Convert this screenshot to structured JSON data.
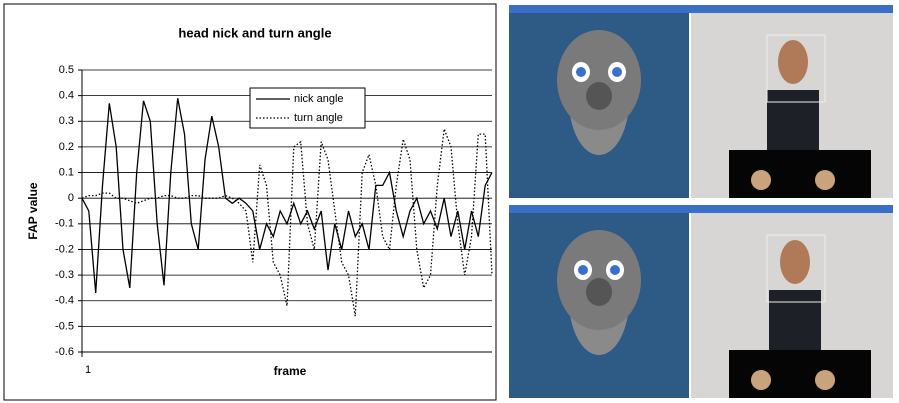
{
  "chart_data": {
    "type": "line",
    "title": "head nick and turn angle",
    "x_label": "frame",
    "y_label": "FAP value",
    "x": [
      1,
      3,
      5,
      7,
      9,
      11,
      13,
      15,
      17,
      19,
      21,
      23,
      25,
      27,
      29,
      31,
      33,
      35,
      37,
      39,
      41,
      43,
      45,
      47,
      49,
      51,
      53,
      55,
      57,
      59,
      61,
      63,
      65,
      67,
      69,
      71,
      73,
      75,
      77,
      79,
      81,
      83,
      85,
      87,
      89,
      91,
      93,
      95,
      97,
      99,
      101,
      103,
      105,
      107,
      109,
      111,
      113,
      115,
      117,
      119,
      121
    ],
    "xlim": [
      1,
      121
    ],
    "xticks": [
      1
    ],
    "ylim": [
      -0.6,
      0.5
    ],
    "yticks": [
      -0.6,
      -0.5,
      -0.4,
      -0.3,
      -0.2,
      -0.1,
      0,
      0.1,
      0.2,
      0.3,
      0.4,
      0.5
    ],
    "grid": true,
    "legend": "top",
    "series": [
      {
        "name": "nick angle",
        "color": "#000000",
        "style": "solid",
        "values": [
          0,
          -0.05,
          -0.37,
          0.05,
          0.37,
          0.2,
          -0.2,
          -0.35,
          0.1,
          0.38,
          0.3,
          -0.1,
          -0.34,
          0.1,
          0.39,
          0.25,
          -0.1,
          -0.2,
          0.15,
          0.32,
          0.2,
          0,
          -0.02,
          0,
          -0.02,
          -0.05,
          -0.2,
          -0.1,
          -0.15,
          -0.05,
          -0.1,
          -0.02,
          -0.1,
          -0.05,
          -0.12,
          -0.05,
          -0.28,
          -0.1,
          -0.2,
          -0.05,
          -0.15,
          -0.1,
          -0.2,
          0.05,
          0.05,
          0.1,
          -0.05,
          -0.15,
          -0.05,
          0,
          -0.1,
          -0.05,
          -0.12,
          0,
          -0.15,
          -0.05,
          -0.2,
          -0.05,
          -0.15,
          0.05,
          0.1
        ]
      },
      {
        "name": "turn angle",
        "color": "#000000",
        "style": "dotted",
        "values": [
          0,
          0.01,
          0.01,
          0.02,
          0.02,
          0,
          0,
          -0.01,
          -0.02,
          -0.01,
          0,
          0,
          0.01,
          0.01,
          0,
          0,
          0.01,
          0.01,
          0,
          0,
          0,
          0.01,
          0,
          -0.02,
          -0.05,
          -0.25,
          0.13,
          0.05,
          -0.25,
          -0.3,
          -0.42,
          0.2,
          0.22,
          -0.1,
          -0.2,
          0.22,
          0.15,
          -0.05,
          -0.25,
          -0.3,
          -0.46,
          0.1,
          0.17,
          0.05,
          -0.15,
          -0.2,
          0.05,
          0.23,
          0.15,
          -0.2,
          -0.35,
          -0.3,
          0.05,
          0.27,
          0.2,
          -0.1,
          -0.3,
          -0.15,
          0.25,
          0.25,
          -0.3
        ]
      }
    ]
  }
}
